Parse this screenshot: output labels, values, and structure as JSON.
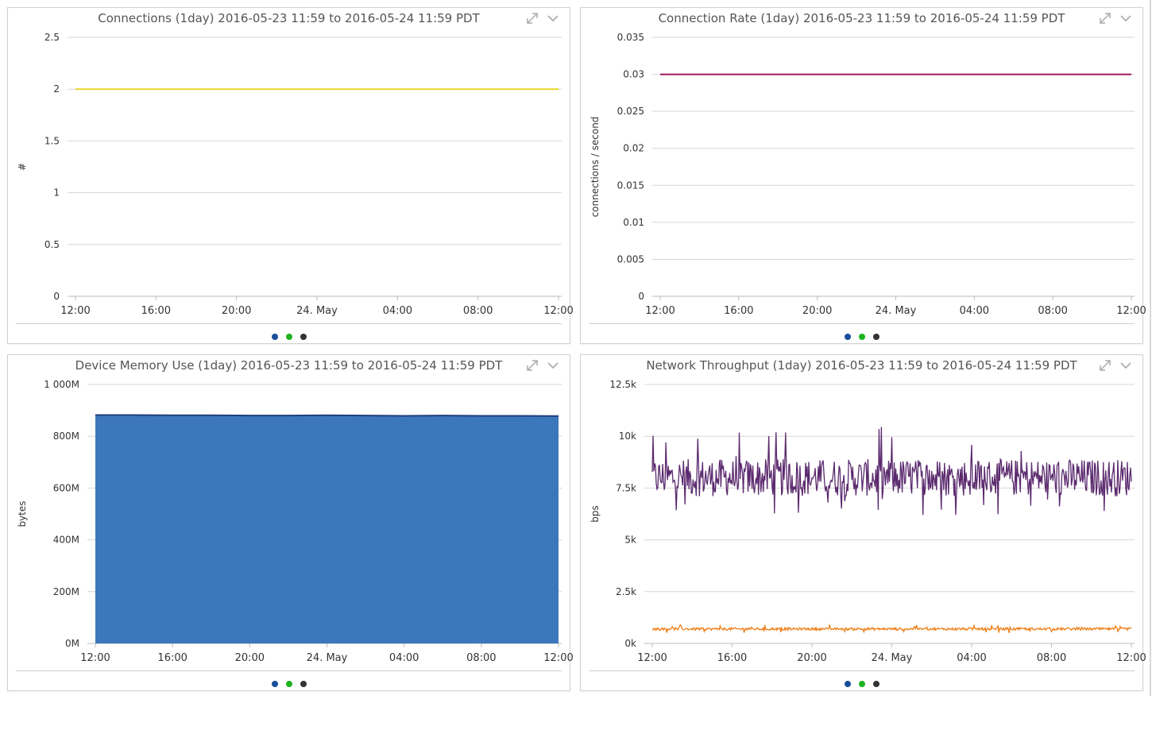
{
  "legend_colors": [
    "#1a4e9c",
    "#1fb31f",
    "#333333"
  ],
  "icons": {
    "expand": "expand-icon",
    "menu": "chevron-down-icon"
  },
  "chart_data": [
    {
      "type": "line",
      "title": "Connections (1day) 2016-05-23 11:59 to 2016-05-24 11:59 PDT",
      "ylabel": "#",
      "ylim": [
        0,
        2.5
      ],
      "yticks": [
        "0",
        "0.5",
        "1",
        "1.5",
        "2",
        "2.5"
      ],
      "ytick_values": [
        0,
        0.5,
        1,
        1.5,
        2,
        2.5
      ],
      "xticks": [
        "12:00",
        "16:00",
        "20:00",
        "24. May",
        "04:00",
        "08:00",
        "12:00"
      ],
      "grid": true,
      "series": [
        {
          "color": "#e8d82a",
          "x": [
            0,
            24
          ],
          "values": [
            2,
            2
          ]
        }
      ]
    },
    {
      "type": "line",
      "title": "Connection Rate (1day) 2016-05-23 11:59 to 2016-05-24 11:59 PDT",
      "ylabel": "connections / second",
      "ylim": [
        0,
        0.035
      ],
      "yticks": [
        "0",
        "0.005",
        "0.01",
        "0.015",
        "0.02",
        "0.025",
        "0.03",
        "0.035"
      ],
      "ytick_values": [
        0,
        0.005,
        0.01,
        0.015,
        0.02,
        0.025,
        0.03,
        0.035
      ],
      "xticks": [
        "12:00",
        "16:00",
        "20:00",
        "24. May",
        "04:00",
        "08:00",
        "12:00"
      ],
      "grid": true,
      "series": [
        {
          "color": "#a3155c",
          "x": [
            0,
            24
          ],
          "values": [
            0.03,
            0.03
          ]
        }
      ]
    },
    {
      "type": "area",
      "title": "Device Memory Use (1day) 2016-05-23 11:59 to 2016-05-24 11:59 PDT",
      "ylabel": "bytes",
      "ylim": [
        0,
        1000000000
      ],
      "yticks": [
        "0M",
        "200M",
        "400M",
        "600M",
        "800M",
        "1 000M"
      ],
      "ytick_values": [
        0,
        200000000,
        400000000,
        600000000,
        800000000,
        1000000000
      ],
      "xticks": [
        "12:00",
        "16:00",
        "20:00",
        "24. May",
        "04:00",
        "08:00",
        "12:00"
      ],
      "grid": true,
      "series": [
        {
          "color": "#3d77bb",
          "line_color": "#1f3e7a",
          "x": [
            0,
            2,
            4,
            6,
            8,
            10,
            12,
            14,
            16,
            18,
            20,
            22,
            24
          ],
          "values": [
            882000000,
            882000000,
            881000000,
            881000000,
            880000000,
            880000000,
            881000000,
            880000000,
            879000000,
            880000000,
            879000000,
            879000000,
            878000000
          ]
        }
      ]
    },
    {
      "type": "line",
      "title": "Network Throughput (1day) 2016-05-23 11:59 to 2016-05-24 11:59 PDT",
      "ylabel": "bps",
      "ylim": [
        0,
        12500
      ],
      "yticks": [
        "0k",
        "2.5k",
        "5k",
        "7.5k",
        "10k",
        "12.5k"
      ],
      "ytick_values": [
        0,
        2500,
        5000,
        7500,
        10000,
        12500
      ],
      "xticks": [
        "12:00",
        "16:00",
        "20:00",
        "24. May",
        "04:00",
        "08:00",
        "12:00"
      ],
      "grid": true,
      "series": [
        {
          "color": "#5b2a6e",
          "x_range": [
            0,
            24
          ],
          "mean": 8000,
          "noise": 900,
          "spikes_high": [
            9000,
            10500
          ],
          "spikes_low": [
            6200,
            7000
          ]
        },
        {
          "color": "#ee7d14",
          "x_range": [
            0,
            24
          ],
          "mean": 700,
          "noise": 60,
          "spikes_high": [
            780,
            900
          ],
          "spikes_low": [
            500,
            600
          ]
        }
      ]
    }
  ]
}
